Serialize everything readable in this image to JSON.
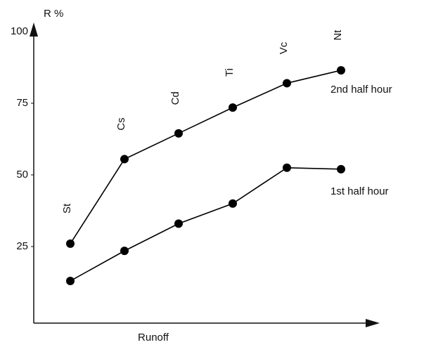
{
  "chart_data": {
    "type": "line",
    "y_label": "R %",
    "x_label": "Runoff",
    "categories": [
      "St",
      "Cs",
      "Cd",
      "Ti",
      "Vc",
      "Nt"
    ],
    "series": [
      {
        "name": "2nd half hour",
        "color": "#000000",
        "values": [
          26,
          55.5,
          64.5,
          73.5,
          82,
          86.5
        ]
      },
      {
        "name": "1st half hour",
        "color": "#000000",
        "values": [
          13,
          23.5,
          33,
          40,
          52.5,
          52
        ]
      }
    ],
    "ylim": [
      0,
      100
    ],
    "yticks": [
      25,
      50,
      75,
      100
    ]
  }
}
